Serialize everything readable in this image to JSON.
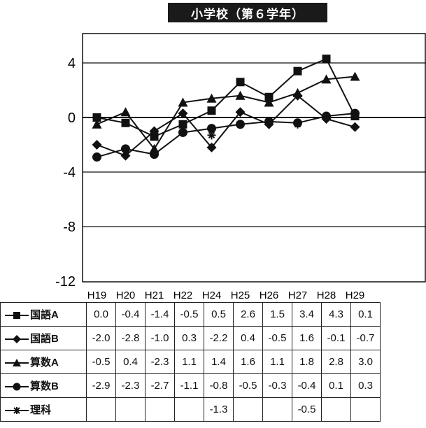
{
  "chart_data": {
    "type": "line",
    "title": "小学校（第６学年）",
    "categories": [
      "H19",
      "H20",
      "H21",
      "H22",
      "H24",
      "H25",
      "H26",
      "H27",
      "H28",
      "H29"
    ],
    "y_tick_labels": [
      "4",
      "0",
      "-4",
      "-8",
      "-12"
    ],
    "ylim": [
      -12,
      6
    ],
    "grid": true,
    "legend": "table-left",
    "series": [
      {
        "name": "国語A",
        "marker": "square",
        "values": [
          0.0,
          -0.4,
          -1.4,
          -0.5,
          0.5,
          2.6,
          1.5,
          3.4,
          4.3,
          0.1
        ],
        "labels": [
          "0.0",
          "-0.4",
          "-1.4",
          "-0.5",
          "0.5",
          "2.6",
          "1.5",
          "3.4",
          "4.3",
          "0.1"
        ]
      },
      {
        "name": "国語B",
        "marker": "diamond",
        "values": [
          -2.0,
          -2.8,
          -1.0,
          0.3,
          -2.2,
          0.4,
          -0.5,
          1.6,
          -0.1,
          -0.7
        ],
        "labels": [
          "-2.0",
          "-2.8",
          "-1.0",
          "0.3",
          "-2.2",
          "0.4",
          "-0.5",
          "1.6",
          "-0.1",
          "-0.7"
        ]
      },
      {
        "name": "算数A",
        "marker": "triangle",
        "values": [
          -0.5,
          0.4,
          -2.3,
          1.1,
          1.4,
          1.6,
          1.1,
          1.8,
          2.8,
          3.0
        ],
        "labels": [
          "-0.5",
          "0.4",
          "-2.3",
          "1.1",
          "1.4",
          "1.6",
          "1.1",
          "1.8",
          "2.8",
          "3.0"
        ]
      },
      {
        "name": "算数B",
        "marker": "circle",
        "values": [
          -2.9,
          -2.3,
          -2.7,
          -1.1,
          -0.8,
          -0.5,
          -0.3,
          -0.4,
          0.1,
          0.3
        ],
        "labels": [
          "-2.9",
          "-2.3",
          "-2.7",
          "-1.1",
          "-0.8",
          "-0.5",
          "-0.3",
          "-0.4",
          "0.1",
          "0.3"
        ]
      },
      {
        "name": "理科",
        "marker": "asterisk",
        "values": [
          null,
          null,
          null,
          null,
          -1.3,
          null,
          null,
          -0.5,
          null,
          null
        ],
        "labels": [
          "",
          "",
          "",
          "",
          "-1.3",
          "",
          "",
          "-0.5",
          "",
          ""
        ]
      }
    ]
  }
}
